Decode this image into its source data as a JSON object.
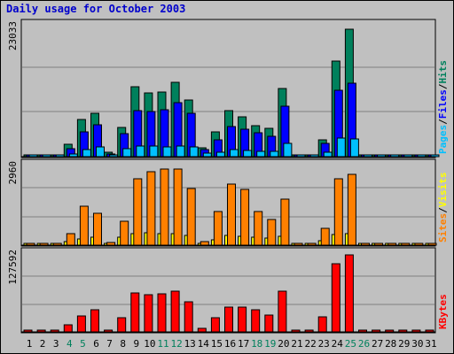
{
  "chart_data": {
    "type": "bar",
    "title": "Daily usage for October 2003",
    "categories": [
      "1",
      "2",
      "3",
      "4",
      "5",
      "6",
      "7",
      "8",
      "9",
      "10",
      "11",
      "12",
      "13",
      "14",
      "15",
      "16",
      "17",
      "18",
      "19",
      "20",
      "21",
      "22",
      "23",
      "24",
      "25",
      "26",
      "27",
      "28",
      "29",
      "30",
      "31"
    ],
    "weekend_days": [
      "4",
      "5",
      "11",
      "12",
      "18",
      "19",
      "25",
      "26"
    ],
    "panels": [
      {
        "id": "hits_files_pages",
        "ymax_label": "23033",
        "ylim": [
          0,
          23033
        ],
        "series": [
          {
            "name": "Hits",
            "color": "#00805c",
            "offset": 0,
            "values": [
              220,
              180,
              200,
              2200,
              6600,
              7600,
              800,
              5100,
              12400,
              11300,
              11500,
              13200,
              10000,
              1600,
              4400,
              8200,
              7100,
              5500,
              5000,
              12000,
              0,
              0,
              3000,
              16900,
              22500,
              0,
              0,
              0,
              0,
              0,
              0
            ]
          },
          {
            "name": "Files",
            "color": "#0000ff",
            "offset": 1,
            "values": [
              120,
              100,
              120,
              1400,
              4400,
              5600,
              500,
              4000,
              8200,
              8000,
              8300,
              9600,
              7700,
              1200,
              3000,
              5400,
              4900,
              4300,
              3600,
              8900,
              0,
              0,
              2300,
              11700,
              13000,
              0,
              0,
              0,
              0,
              0,
              0
            ]
          },
          {
            "name": "Pages",
            "color": "#00c0ff",
            "offset": 2,
            "values": [
              80,
              60,
              80,
              500,
              1300,
              1800,
              300,
              1400,
              1900,
              1900,
              1800,
              1900,
              1700,
              700,
              800,
              1300,
              1100,
              900,
              900,
              2400,
              0,
              0,
              800,
              3300,
              3200,
              0,
              0,
              0,
              0,
              0,
              0
            ]
          }
        ],
        "labels": [
          {
            "text": "Hits",
            "color": "#00805c"
          },
          {
            "text": "/",
            "color": "#000000"
          },
          {
            "text": "Files",
            "color": "#0000ff"
          },
          {
            "text": "/",
            "color": "#000000"
          },
          {
            "text": "Pages",
            "color": "#00c0ff"
          }
        ]
      },
      {
        "id": "visits_sites",
        "ymax_label": "2960",
        "ylim": [
          0,
          2960
        ],
        "series": [
          {
            "name": "Visits",
            "color": "#ffff00",
            "offset": 0,
            "values": [
              50,
              40,
              50,
              120,
              230,
              300,
              60,
              300,
              440,
              470,
              430,
              440,
              380,
              80,
              200,
              380,
              340,
              300,
              280,
              330,
              0,
              0,
              160,
              400,
              430,
              0,
              0,
              0,
              0,
              0,
              0
            ]
          },
          {
            "name": "Sites",
            "color": "#ff8000",
            "offset": 1,
            "values": [
              60,
              50,
              60,
              440,
              1460,
              1200,
              100,
              900,
              2480,
              2750,
              2850,
              2850,
              2120,
              120,
              1270,
              2280,
              2080,
              1270,
              950,
              1730,
              0,
              0,
              630,
              2500,
              2650,
              0,
              0,
              0,
              0,
              0,
              0
            ]
          }
        ],
        "labels": [
          {
            "text": "Visits",
            "color": "#ffff00"
          },
          {
            "text": "/",
            "color": "#000000"
          },
          {
            "text": "Sites",
            "color": "#ff8000"
          }
        ]
      },
      {
        "id": "kbytes",
        "ymax_label": "127592",
        "ylim": [
          0,
          127592
        ],
        "series": [
          {
            "name": "KBytes",
            "color": "#ff0000",
            "offset": 0,
            "values": [
              1700,
              1500,
              1700,
              12000,
              27000,
              37000,
              2800,
              23000,
              64500,
              62000,
              62500,
              67000,
              49500,
              6500,
              23000,
              41000,
              41500,
              36000,
              28000,
              68000,
              0,
              0,
              25000,
              113000,
              127592,
              0,
              0,
              0,
              0,
              0,
              0
            ]
          }
        ],
        "labels": [
          {
            "text": "KBytes",
            "color": "#ff0000"
          }
        ]
      }
    ],
    "colors": {
      "background": "#c0c0c0",
      "grid": "#808080",
      "title": "#0000cc",
      "weekday": "#000000",
      "weekend": "#00805c"
    }
  }
}
